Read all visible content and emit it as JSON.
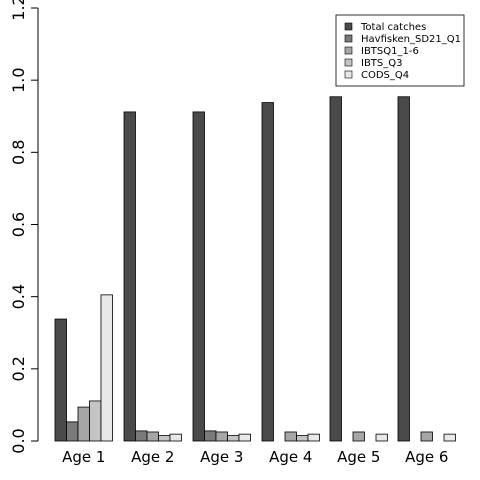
{
  "chart_data": {
    "type": "bar",
    "categories": [
      "Age 1",
      "Age 2",
      "Age 3",
      "Age 4",
      "Age 5",
      "Age 6"
    ],
    "series": [
      {
        "name": "Total catches",
        "color": "#4a4a4a",
        "values": [
          0.338,
          0.912,
          0.912,
          0.938,
          0.954,
          0.954
        ]
      },
      {
        "name": "Havfisken_SD21_Q1",
        "color": "#7a7a7a",
        "values": [
          0.053,
          0.028,
          0.028,
          0.0,
          0.0,
          0.0
        ]
      },
      {
        "name": "IBTSQ1_1-6",
        "color": "#a6a6a6",
        "values": [
          0.094,
          0.025,
          0.025,
          0.025,
          0.025,
          0.025
        ]
      },
      {
        "name": "IBTS_Q3",
        "color": "#c4c4c4",
        "values": [
          0.111,
          0.015,
          0.015,
          0.015,
          0.0,
          0.0
        ]
      },
      {
        "name": "CODS_Q4",
        "color": "#e8e8e8",
        "values": [
          0.405,
          0.019,
          0.019,
          0.019,
          0.019,
          0.019
        ]
      }
    ],
    "ylim": [
      0,
      1.2
    ],
    "yticks": [
      "0.0",
      "0.2",
      "0.4",
      "0.6",
      "0.8",
      "1.0",
      "1.2"
    ],
    "legend_position": "top-right",
    "grid": false
  }
}
